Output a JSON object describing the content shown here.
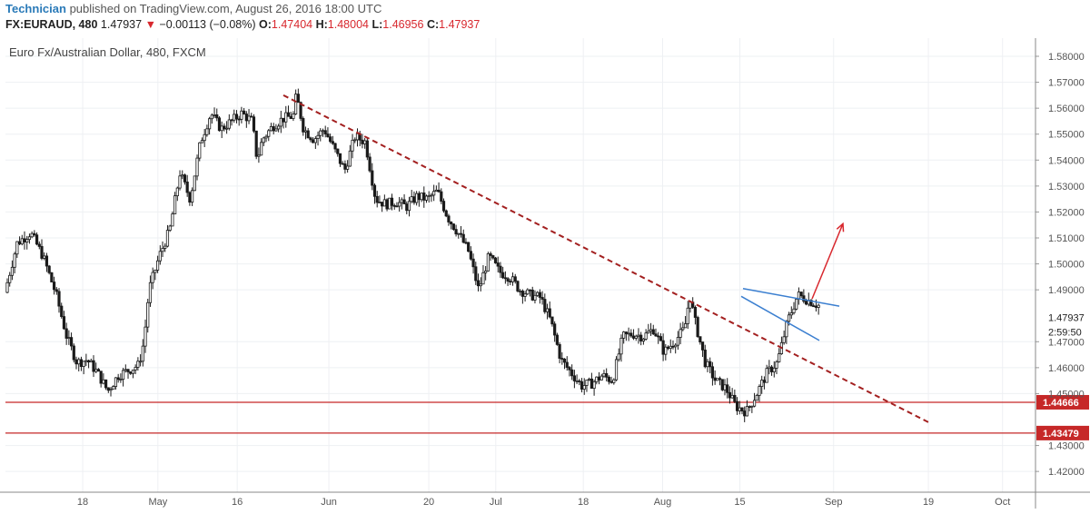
{
  "header": {
    "author": "Technician",
    "published": "published on TradingView.com, August 26, 2016 18:00 UTC",
    "symbol": "FX:EURAUD, 480",
    "last": "1.47937",
    "change": "−0.00113 (−0.08%)",
    "open_label": "O:",
    "open": "1.47404",
    "high_label": "H:",
    "high": "1.48004",
    "low_label": "L:",
    "low": "1.46956",
    "close_label": "C:",
    "close": "1.47937"
  },
  "chart_data": {
    "type": "candlestick",
    "title": "Euro Fx/Australian Dollar, 480, FXCM",
    "ylim": [
      1.412,
      1.587
    ],
    "y_ticks": [
      "1.58000",
      "1.57000",
      "1.56000",
      "1.55000",
      "1.54000",
      "1.53000",
      "1.52000",
      "1.51000",
      "1.50000",
      "1.49000",
      "1.47000",
      "1.46000",
      "1.45000",
      "1.43000",
      "1.42000"
    ],
    "x_ticks": [
      "18",
      "May",
      "16",
      "Jun",
      "20",
      "Jul",
      "18",
      "Aug",
      "15",
      "Sep",
      "19",
      "Oct"
    ],
    "price_labels": {
      "current": "1.47937",
      "countdown": "2:59:50",
      "level1": "1.44666",
      "level2": "1.43479"
    },
    "horizontal_levels": [
      1.44666,
      1.43479
    ],
    "path_points": [
      [
        0,
        1.489
      ],
      [
        0.012,
        1.508
      ],
      [
        0.025,
        1.512
      ],
      [
        0.037,
        1.503
      ],
      [
        0.05,
        1.488
      ],
      [
        0.06,
        1.472
      ],
      [
        0.07,
        1.462
      ],
      [
        0.08,
        1.463
      ],
      [
        0.09,
        1.458
      ],
      [
        0.1,
        1.451
      ],
      [
        0.11,
        1.457
      ],
      [
        0.12,
        1.459
      ],
      [
        0.13,
        1.461
      ],
      [
        0.135,
        1.47
      ],
      [
        0.14,
        1.49
      ],
      [
        0.15,
        1.503
      ],
      [
        0.16,
        1.513
      ],
      [
        0.17,
        1.535
      ],
      [
        0.18,
        1.525
      ],
      [
        0.19,
        1.547
      ],
      [
        0.2,
        1.558
      ],
      [
        0.21,
        1.552
      ],
      [
        0.22,
        1.555
      ],
      [
        0.23,
        1.558
      ],
      [
        0.24,
        1.555
      ],
      [
        0.245,
        1.54
      ],
      [
        0.25,
        1.548
      ],
      [
        0.26,
        1.553
      ],
      [
        0.27,
        1.556
      ],
      [
        0.28,
        1.557
      ],
      [
        0.283,
        1.565
      ],
      [
        0.29,
        1.552
      ],
      [
        0.3,
        1.548
      ],
      [
        0.31,
        1.552
      ],
      [
        0.32,
        1.544
      ],
      [
        0.33,
        1.536
      ],
      [
        0.34,
        1.549
      ],
      [
        0.35,
        1.547
      ],
      [
        0.36,
        1.525
      ],
      [
        0.37,
        1.523
      ],
      [
        0.38,
        1.524
      ],
      [
        0.39,
        1.522
      ],
      [
        0.4,
        1.526
      ],
      [
        0.41,
        1.525
      ],
      [
        0.42,
        1.528
      ],
      [
        0.43,
        1.518
      ],
      [
        0.44,
        1.512
      ],
      [
        0.45,
        1.505
      ],
      [
        0.46,
        1.49
      ],
      [
        0.47,
        1.503
      ],
      [
        0.48,
        1.497
      ],
      [
        0.49,
        1.495
      ],
      [
        0.5,
        1.49
      ],
      [
        0.51,
        1.488
      ],
      [
        0.52,
        1.487
      ],
      [
        0.53,
        1.478
      ],
      [
        0.54,
        1.463
      ],
      [
        0.55,
        1.458
      ],
      [
        0.56,
        1.453
      ],
      [
        0.57,
        1.454
      ],
      [
        0.58,
        1.457
      ],
      [
        0.59,
        1.455
      ],
      [
        0.6,
        1.472
      ],
      [
        0.61,
        1.473
      ],
      [
        0.62,
        1.472
      ],
      [
        0.63,
        1.475
      ],
      [
        0.64,
        1.466
      ],
      [
        0.65,
        1.47
      ],
      [
        0.66,
        1.475
      ],
      [
        0.665,
        1.488
      ],
      [
        0.67,
        1.478
      ],
      [
        0.68,
        1.462
      ],
      [
        0.69,
        1.455
      ],
      [
        0.7,
        1.452
      ],
      [
        0.71,
        1.445
      ],
      [
        0.72,
        1.443
      ],
      [
        0.73,
        1.45
      ],
      [
        0.74,
        1.458
      ],
      [
        0.75,
        1.462
      ],
      [
        0.76,
        1.478
      ],
      [
        0.77,
        1.488
      ],
      [
        0.78,
        1.486
      ],
      [
        0.79,
        1.484
      ],
      [
        0.8,
        1.484
      ],
      [
        0.81,
        1.477
      ],
      [
        0.82,
        1.475
      ]
    ],
    "trendline": {
      "start": {
        "date": "May 22",
        "price": 1.565
      },
      "end": {
        "date": "Sep 24",
        "price": 1.439
      }
    },
    "flag_upper": {
      "start_price": 1.4905,
      "end_price": 1.4837
    },
    "flag_lower": {
      "start_price": 1.4875,
      "end_price": 1.4705
    },
    "arrow": {
      "start_price": 1.4865,
      "end_price": 1.5155
    }
  },
  "colors": {
    "candle": "#1a1a1a",
    "trendline": "#a32020",
    "flag": "#3b7fd0",
    "arrow": "#d8282e",
    "level": "#c62828",
    "grid": "#eef0f3",
    "axis_text": "#555555",
    "author": "#2a7ab8"
  }
}
